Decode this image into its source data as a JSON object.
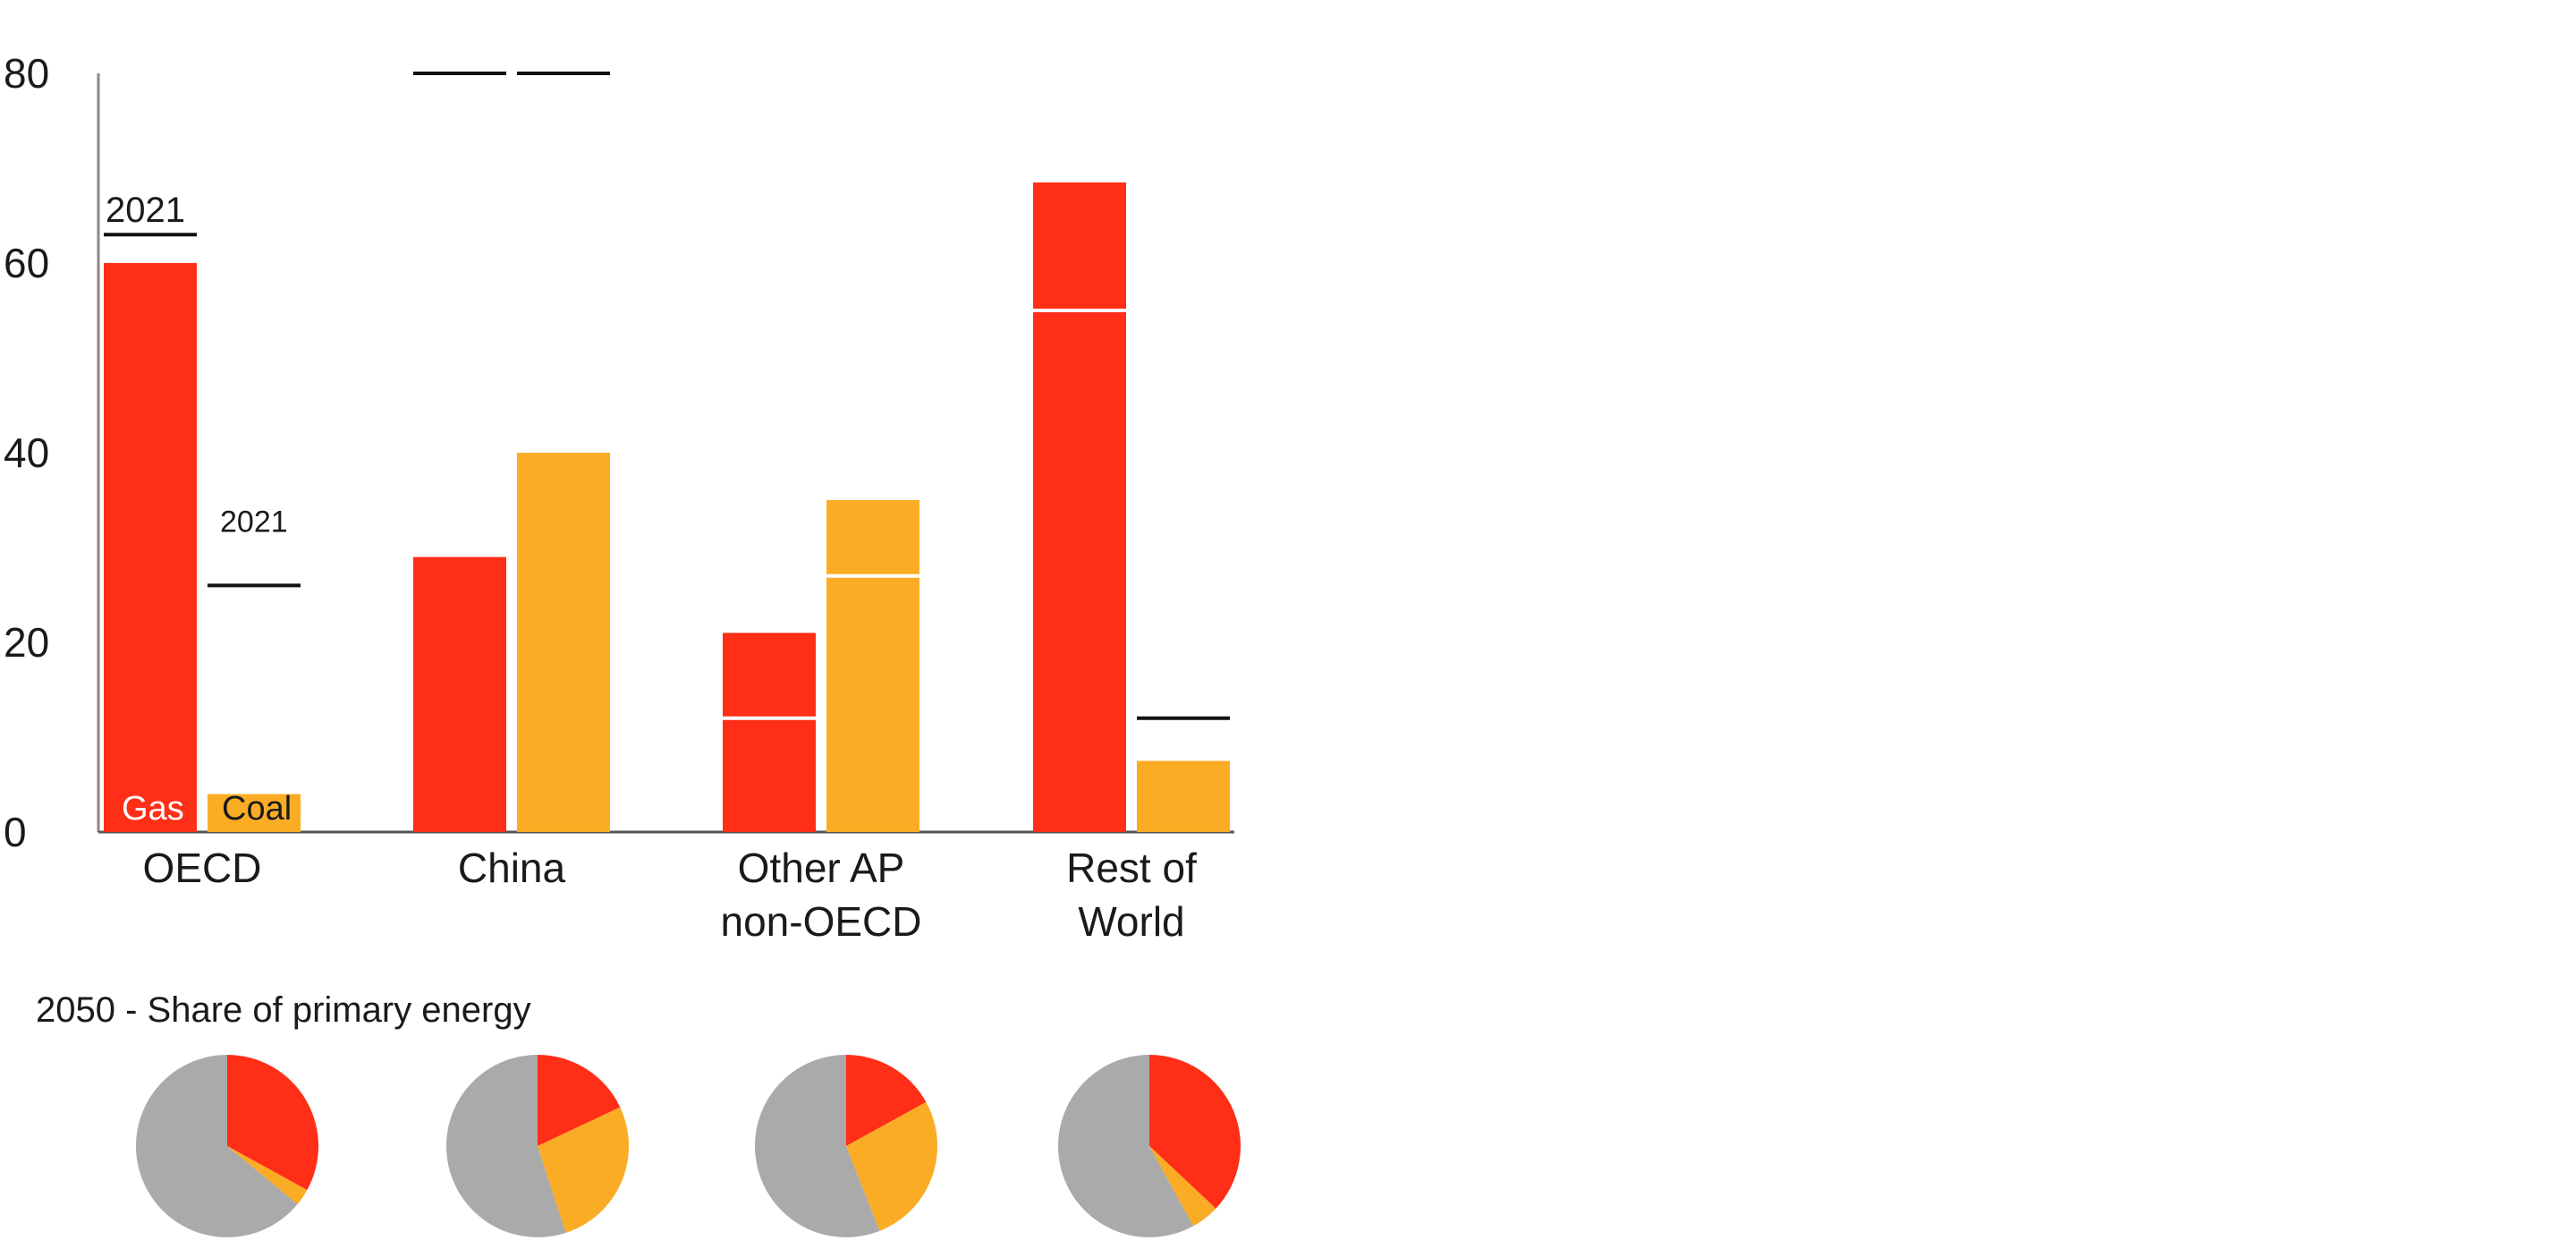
{
  "chart_data": {
    "type": "bar",
    "title": "",
    "xlabel": "",
    "ylabel": "",
    "ylim": [
      0,
      80
    ],
    "yticks": [
      "0",
      "20",
      "40",
      "60",
      "80"
    ],
    "categories": [
      "OECD",
      "China",
      "Other AP non-OECD",
      "Rest of World"
    ],
    "category_lines": [
      [
        "OECD"
      ],
      [
        "China"
      ],
      [
        "Other AP",
        "non-OECD"
      ],
      [
        "Rest of",
        "World"
      ]
    ],
    "series": [
      {
        "name": "Gas",
        "values": [
          60,
          29,
          21,
          68.5
        ],
        "color": "#ff2e17"
      },
      {
        "name": "Coal",
        "values": [
          4,
          40,
          35,
          7.5
        ],
        "color": "#fbac25"
      }
    ],
    "markers_2021": {
      "Gas": [
        63,
        80,
        12,
        55
      ],
      "Coal": [
        26,
        80,
        27,
        12
      ]
    },
    "marker_label": "2021",
    "pie_title": "2050 - Share of primary energy",
    "pies": [
      {
        "region": "OECD",
        "gas": 0.33,
        "coal": 0.03,
        "other": 0.64
      },
      {
        "region": "China",
        "gas": 0.18,
        "coal": 0.27,
        "other": 0.55
      },
      {
        "region": "Other AP non-OECD",
        "gas": 0.17,
        "coal": 0.27,
        "other": 0.56
      },
      {
        "region": "Rest of World",
        "gas": 0.37,
        "coal": 0.05,
        "other": 0.58
      }
    ],
    "other_color": "#aaaaaa"
  }
}
